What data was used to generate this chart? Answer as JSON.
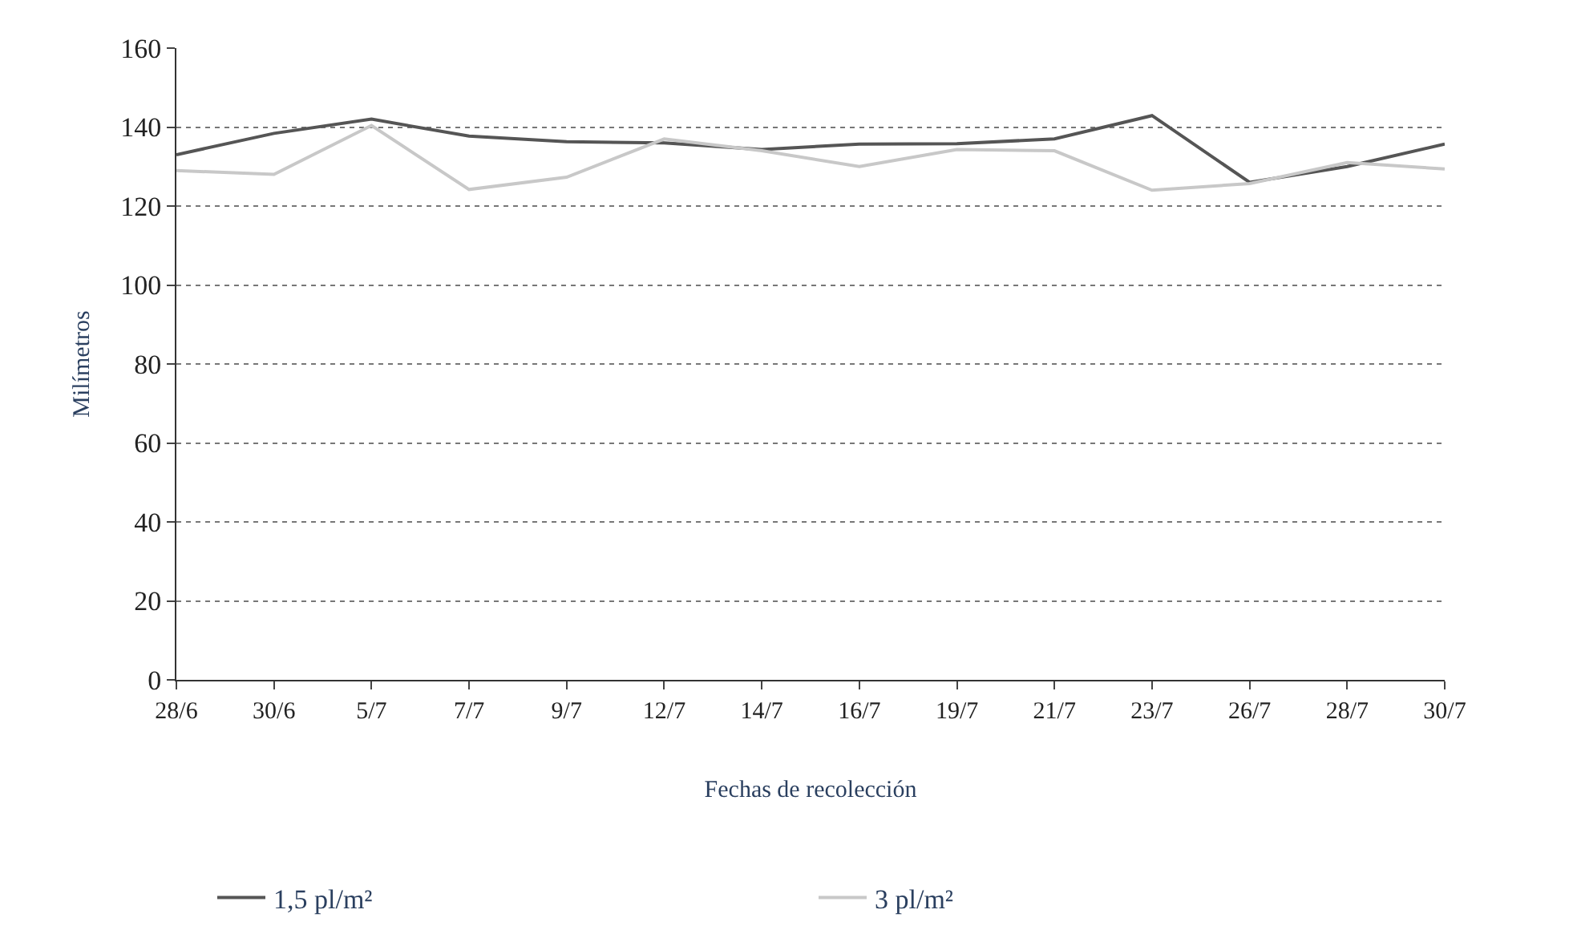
{
  "chart_data": {
    "type": "line",
    "xlabel": "Fechas de recolección",
    "ylabel": "Milímetros",
    "categories": [
      "28/6",
      "30/6",
      "5/7",
      "7/7",
      "9/7",
      "12/7",
      "14/7",
      "16/7",
      "19/7",
      "21/7",
      "23/7",
      "26/7",
      "28/7",
      "30/7"
    ],
    "series": [
      {
        "name": "1,5 pl/m²",
        "color": "#555555",
        "values": [
          133,
          138.4,
          142,
          137.7,
          136.3,
          136,
          134.3,
          135.7,
          135.8,
          137,
          142.9,
          126,
          130,
          135.7
        ]
      },
      {
        "name": "3 pl/m²",
        "color": "#c8c8c8",
        "values": [
          129,
          128,
          140.4,
          124.2,
          127.3,
          137,
          134,
          130,
          134.3,
          134,
          124,
          125.7,
          131,
          129.4
        ]
      }
    ],
    "ylim": [
      0,
      160
    ],
    "yticks": [
      0,
      20,
      40,
      60,
      80,
      100,
      120,
      140,
      160
    ],
    "grid": "y",
    "legend": "bottom",
    "marker": "none",
    "line_style": "solid"
  }
}
